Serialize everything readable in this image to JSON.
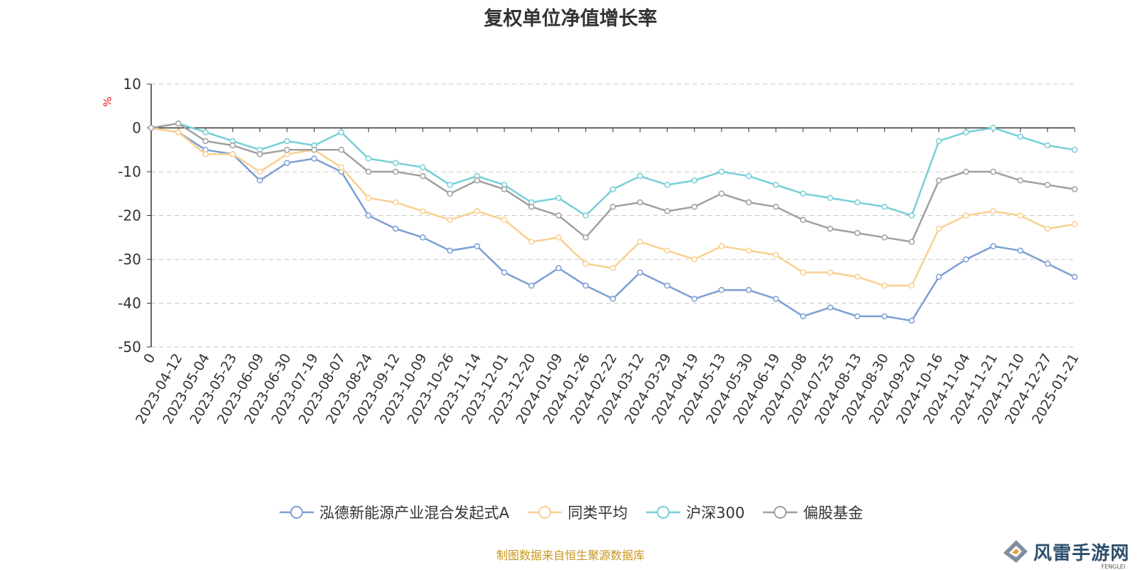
{
  "title": "复权单位净值增长率",
  "unit": "%",
  "footer": "制图数据来自恒生聚源数据库",
  "watermark": {
    "name": "风雷手游网",
    "sub": "FENGLEI"
  },
  "chart_data": {
    "type": "line",
    "title": "复权单位净值增长率",
    "ylabel": "%",
    "ylim": [
      -50,
      10
    ],
    "yticks": [
      10,
      0,
      -10,
      -20,
      -30,
      -40,
      -50
    ],
    "grid": true,
    "legend": "bottom-center",
    "x_labels": [
      "0",
      "2023-04-12",
      "2023-05-04",
      "2023-05-23",
      "2023-06-09",
      "2023-06-30",
      "2023-07-19",
      "2023-08-07",
      "2023-08-24",
      "2023-09-12",
      "2023-10-09",
      "2023-10-26",
      "2023-11-14",
      "2023-12-01",
      "2023-12-20",
      "2024-01-09",
      "2024-01-26",
      "2024-02-22",
      "2024-03-12",
      "2024-03-29",
      "2024-04-19",
      "2024-05-13",
      "2024-05-30",
      "2024-06-19",
      "2024-07-08",
      "2024-07-25",
      "2024-08-13",
      "2024-08-30",
      "2024-09-20",
      "2024-10-16",
      "2024-11-04",
      "2024-11-21",
      "2024-12-10",
      "2024-12-27",
      "2025-01-21"
    ],
    "series": [
      {
        "name": "泓德新能源产业混合发起式A",
        "color": "#7b9fd4",
        "values": [
          0,
          -1,
          -5,
          -6,
          -12,
          -8,
          -7,
          -10,
          -20,
          -23,
          -25,
          -28,
          -27,
          -33,
          -36,
          -32,
          -36,
          -39,
          -33,
          -36,
          -39,
          -37,
          -37,
          -39,
          -43,
          -41,
          -43,
          -43,
          -44,
          -34,
          -30,
          -27,
          -28,
          -31,
          -34
        ]
      },
      {
        "name": "同类平均",
        "color": "#f9d08f",
        "values": [
          0,
          -1,
          -6,
          -6,
          -10,
          -6,
          -5,
          -9,
          -16,
          -17,
          -19,
          -21,
          -19,
          -21,
          -26,
          -25,
          -31,
          -32,
          -26,
          -28,
          -30,
          -27,
          -28,
          -29,
          -33,
          -33,
          -34,
          -36,
          -36,
          -23,
          -20,
          -19,
          -20,
          -23,
          -22
        ]
      },
      {
        "name": "沪深300",
        "color": "#76cfd6",
        "values": [
          0,
          1,
          -1,
          -3,
          -5,
          -3,
          -4,
          -1,
          -7,
          -8,
          -9,
          -13,
          -11,
          -13,
          -17,
          -16,
          -20,
          -14,
          -11,
          -13,
          -12,
          -10,
          -11,
          -13,
          -15,
          -16,
          -17,
          -18,
          -20,
          -3,
          -1,
          0,
          -2,
          -4,
          -5
        ]
      },
      {
        "name": "偏股基金",
        "color": "#a0a0a0",
        "values": [
          0,
          1,
          -3,
          -4,
          -6,
          -5,
          -5,
          -5,
          -10,
          -10,
          -11,
          -15,
          -12,
          -14,
          -18,
          -20,
          -25,
          -18,
          -17,
          -19,
          -18,
          -15,
          -17,
          -18,
          -21,
          -23,
          -24,
          -25,
          -26,
          -12,
          -10,
          -10,
          -12,
          -13,
          -14
        ]
      }
    ]
  }
}
